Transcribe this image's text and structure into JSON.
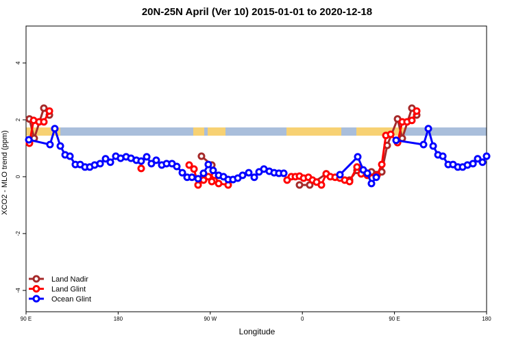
{
  "chart_data": {
    "type": "line",
    "title": "20N-25N April (Ver 10)   2015-01-01 to 2020-12-18",
    "x_label": "Longitude",
    "y_label": "XCO2 - MLO trend (ppm)",
    "xlim": [
      90,
      540
    ],
    "ylim": [
      -4.75,
      5.3
    ],
    "xticks": [
      {
        "value": 90,
        "label": "90 E"
      },
      {
        "value": 180,
        "label": "180"
      },
      {
        "value": 270,
        "label": "90 W"
      },
      {
        "value": 360,
        "label": "0"
      },
      {
        "value": 450,
        "label": "90 E"
      },
      {
        "value": 540,
        "label": "180"
      }
    ],
    "yticks": [
      -4,
      -2,
      0,
      2,
      4
    ],
    "legend": "bottom-left",
    "series": [
      {
        "name": "Land Nadir",
        "color": "#a52a2a",
        "x": [
          93.3,
          98,
          107.4,
          112.8,
          null,
          261.4,
          271.5,
          null,
          357.2,
          367.2,
          383.3,
          406.1,
          413.4,
          427.5,
          437.6,
          442.9,
          453,
          457.6,
          467,
          471.7
        ],
        "values": [
          2.03,
          1.35,
          2.41,
          2.17,
          null,
          0.72,
          0.41,
          null,
          -0.29,
          -0.29,
          0.1,
          -0.12,
          0.22,
          0.17,
          0.17,
          1.1,
          2.03,
          1.35,
          2.41,
          2.17
        ]
      },
      {
        "name": "Land Glint",
        "color": "#ff0000",
        "x": [
          93.3,
          97.4,
          102.7,
          107.4,
          112.8,
          null,
          202.5,
          null,
          249.4,
          254.1,
          258.1,
          263.4,
          268.1,
          271.5,
          274.2,
          278.2,
          287.5,
          null,
          345.1,
          349.2,
          353.2,
          357.2,
          361.2,
          365.9,
          369.9,
          373.9,
          378.6,
          383.3,
          387.3,
          392,
          396.7,
          401.4,
          406.1,
          413.4,
          417.5,
          423.5,
          432.9,
          437.6,
          441.6,
          446.3,
          453,
          457.6,
          462.3,
          467,
          471.7
        ],
        "values": [
          1.18,
          1.98,
          1.93,
          1.93,
          2.31,
          null,
          0.29,
          null,
          0.41,
          0.27,
          -0.29,
          -0.12,
          0.0,
          -0.17,
          0.05,
          -0.24,
          -0.29,
          null,
          -0.12,
          0.0,
          0.0,
          0.02,
          -0.05,
          -0.02,
          -0.12,
          -0.19,
          -0.29,
          0.1,
          0.0,
          -0.02,
          -0.05,
          -0.12,
          -0.17,
          0.34,
          0.1,
          0.05,
          0.05,
          0.43,
          1.45,
          1.49,
          1.2,
          1.93,
          1.93,
          1.98,
          2.31
        ]
      },
      {
        "name": "Ocean Glint",
        "color": "#0000ff",
        "x": [
          92.7,
          113.4,
          118.1,
          123.5,
          128.2,
          132.9,
          138.2,
          142.9,
          147.6,
          152.3,
          157,
          162.4,
          167.7,
          172.4,
          177.7,
          182.4,
          187.8,
          192.5,
          197.8,
          202.5,
          207.9,
          212.5,
          217.2,
          222.6,
          227.3,
          232.6,
          237.3,
          242.7,
          247.4,
          252.1,
          258.1,
          263.4,
          268.1,
          272.8,
          278.2,
          282.9,
          287.5,
          292.2,
          296.9,
          301.6,
          307.6,
          313,
          317.7,
          322.4,
          327.7,
          332.4,
          337.1,
          341.8,
          null,
          396.7,
          414.1,
          419.5,
          423.5,
          427.5,
          432.2,
          null,
          451.6,
          478.4,
          483.1,
          487.8,
          492.5,
          497.2,
          502.5,
          507.2,
          511.9,
          516.6,
          521.3,
          526.7,
          531.3,
          536,
          540
        ],
        "values": [
          1.3,
          1.13,
          1.69,
          1.08,
          0.77,
          0.72,
          0.43,
          0.43,
          0.34,
          0.34,
          0.41,
          0.46,
          0.63,
          0.51,
          0.72,
          0.65,
          0.7,
          0.65,
          0.58,
          0.55,
          0.7,
          0.46,
          0.58,
          0.41,
          0.46,
          0.46,
          0.36,
          0.14,
          -0.02,
          -0.02,
          -0.07,
          0.12,
          0.43,
          0.22,
          0.05,
          0.0,
          -0.1,
          -0.1,
          -0.05,
          0.05,
          0.14,
          -0.02,
          0.17,
          0.27,
          0.19,
          0.14,
          0.12,
          0.12,
          null,
          0.07,
          0.7,
          0.24,
          0.12,
          -0.24,
          -0.02,
          null,
          1.28,
          1.13,
          1.69,
          1.08,
          0.77,
          0.72,
          0.43,
          0.43,
          0.34,
          0.34,
          0.41,
          0.46,
          0.63,
          0.51,
          0.72
        ]
      }
    ]
  }
}
